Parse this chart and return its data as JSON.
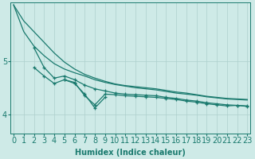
{
  "xlabel": "Humidex (Indice chaleur)",
  "background_color": "#ceeae7",
  "grid_color": "#aed0cd",
  "line_color": "#1a7a6e",
  "x_ticks": [
    0,
    1,
    2,
    3,
    4,
    5,
    6,
    7,
    8,
    9,
    10,
    11,
    12,
    13,
    14,
    15,
    16,
    17,
    18,
    19,
    20,
    21,
    22,
    23
  ],
  "y_ticks": [
    4,
    5
  ],
  "ylim": [
    3.65,
    6.1
  ],
  "xlim": [
    -0.3,
    23.3
  ],
  "series": [
    {
      "x": [
        0,
        1,
        2,
        3,
        4,
        5,
        6,
        7,
        8,
        9,
        10,
        11,
        12,
        13,
        14,
        15,
        16,
        17,
        18,
        19,
        20,
        21,
        22,
        23
      ],
      "y": [
        6.05,
        5.75,
        5.55,
        5.35,
        5.15,
        4.98,
        4.85,
        4.75,
        4.68,
        4.62,
        4.57,
        4.54,
        4.52,
        4.5,
        4.48,
        4.45,
        4.42,
        4.4,
        4.37,
        4.34,
        4.32,
        4.3,
        4.29,
        4.28
      ],
      "marker": false
    },
    {
      "x": [
        0,
        1,
        2,
        3,
        4,
        5,
        6,
        7,
        8,
        9,
        10,
        11,
        12,
        13,
        14,
        15,
        16,
        17,
        18,
        19,
        20,
        21,
        22,
        23
      ],
      "y": [
        6.05,
        5.55,
        5.28,
        5.1,
        4.95,
        4.85,
        4.78,
        4.72,
        4.65,
        4.6,
        4.56,
        4.53,
        4.5,
        4.48,
        4.46,
        4.43,
        4.4,
        4.38,
        4.36,
        4.33,
        4.31,
        4.29,
        4.28,
        4.27
      ],
      "marker": false
    },
    {
      "x": [
        2,
        3,
        4,
        5,
        6,
        7,
        8,
        9,
        10,
        11,
        12,
        13,
        14,
        15,
        16,
        17,
        18,
        19,
        20,
        21,
        22,
        23
      ],
      "y": [
        5.25,
        4.88,
        4.68,
        4.72,
        4.65,
        4.55,
        4.48,
        4.44,
        4.4,
        4.38,
        4.37,
        4.36,
        4.35,
        4.32,
        4.3,
        4.27,
        4.25,
        4.22,
        4.2,
        4.18,
        4.17,
        4.16
      ],
      "marker": true
    },
    {
      "x": [
        2,
        3,
        4,
        5,
        6,
        7,
        8,
        9,
        10,
        11,
        12,
        13,
        14,
        15,
        16,
        17,
        18,
        19,
        20,
        21,
        22,
        23
      ],
      "y": [
        4.88,
        4.72,
        4.58,
        4.65,
        4.6,
        4.35,
        4.18,
        4.38,
        4.37,
        4.35,
        4.34,
        4.33,
        4.32,
        4.3,
        4.28,
        4.25,
        4.23,
        4.2,
        4.18,
        4.16,
        4.17,
        4.15
      ],
      "marker": true
    },
    {
      "x": [
        5,
        6,
        7,
        8,
        9
      ],
      "y": [
        4.65,
        4.58,
        4.38,
        4.12,
        4.32
      ],
      "marker": true
    }
  ],
  "fontsize_xlabel": 7,
  "fontsize_tick": 7
}
